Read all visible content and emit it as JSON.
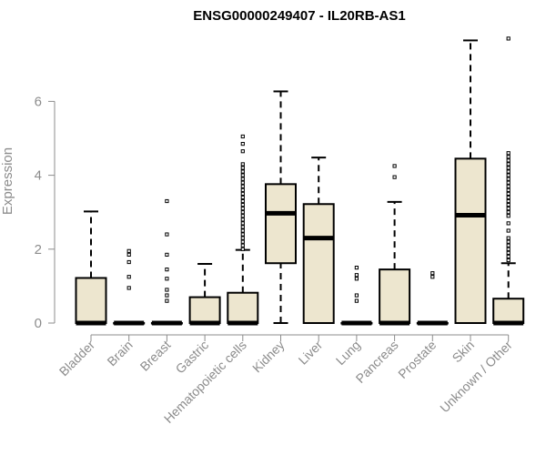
{
  "chart_data": {
    "type": "boxplot",
    "title": "ENSG00000249407 - IL20RB-AS1",
    "ylabel": "Expression",
    "xlabel": "",
    "ylim": [
      0,
      7.8
    ],
    "yticks": [
      0,
      2,
      4,
      6
    ],
    "grid": false,
    "box_color": "#ede6cf",
    "categories": [
      "Bladder",
      "Brain",
      "Breast",
      "Gastric",
      "Hematopoietic cells",
      "Kidney",
      "Liver",
      "Lung",
      "Pancreas",
      "Prostate",
      "Skin",
      "Unknown / Other"
    ],
    "boxes": [
      {
        "whisker_low": 0,
        "q1": 0,
        "median": 0,
        "q3": 1.22,
        "whisker_high": 3.02,
        "outliers": []
      },
      {
        "whisker_low": 0,
        "q1": 0,
        "median": 0,
        "q3": 0,
        "whisker_high": 0,
        "outliers": [
          0.95,
          1.25,
          1.65,
          1.85,
          1.95
        ]
      },
      {
        "whisker_low": 0,
        "q1": 0,
        "median": 0,
        "q3": 0,
        "whisker_high": 0,
        "outliers": [
          0.6,
          0.75,
          0.9,
          1.2,
          1.45,
          1.85,
          2.4,
          3.3
        ]
      },
      {
        "whisker_low": 0,
        "q1": 0,
        "median": 0,
        "q3": 0.7,
        "whisker_high": 1.6,
        "outliers": []
      },
      {
        "whisker_low": 0,
        "q1": 0,
        "median": 0,
        "q3": 0.82,
        "whisker_high": 1.98,
        "outliers": [
          2.0,
          2.1,
          2.2,
          2.3,
          2.4,
          2.5,
          2.6,
          2.7,
          2.8,
          2.9,
          3.0,
          3.1,
          3.2,
          3.3,
          3.4,
          3.5,
          3.6,
          3.7,
          3.8,
          3.9,
          4.0,
          4.1,
          4.2,
          4.3,
          4.65,
          4.85,
          5.05
        ]
      },
      {
        "whisker_low": 0,
        "q1": 1.62,
        "median": 2.97,
        "q3": 3.76,
        "whisker_high": 6.27,
        "outliers": []
      },
      {
        "whisker_low": 0,
        "q1": 0,
        "median": 2.3,
        "q3": 3.22,
        "whisker_high": 4.48,
        "outliers": []
      },
      {
        "whisker_low": 0,
        "q1": 0,
        "median": 0,
        "q3": 0,
        "whisker_high": 0,
        "outliers": [
          0.6,
          0.75,
          1.2,
          1.3,
          1.5
        ]
      },
      {
        "whisker_low": 0,
        "q1": 0,
        "median": 0,
        "q3": 1.45,
        "whisker_high": 3.28,
        "outliers": [
          3.95,
          4.25
        ]
      },
      {
        "whisker_low": 0,
        "q1": 0,
        "median": 0,
        "q3": 0,
        "whisker_high": 0,
        "outliers": [
          1.25,
          1.35
        ]
      },
      {
        "whisker_low": 0,
        "q1": 0,
        "median": 2.92,
        "q3": 4.45,
        "whisker_high": 7.65,
        "outliers": []
      },
      {
        "whisker_low": 0,
        "q1": 0,
        "median": 0,
        "q3": 0.66,
        "whisker_high": 1.62,
        "outliers": [
          1.7,
          1.8,
          1.9,
          2.0,
          2.1,
          2.2,
          2.3,
          2.5,
          2.7,
          2.9,
          3.0,
          3.1,
          3.2,
          3.3,
          3.4,
          3.5,
          3.6,
          3.7,
          3.8,
          3.9,
          4.0,
          4.1,
          4.2,
          4.3,
          4.4,
          4.5,
          4.6,
          7.7
        ]
      }
    ]
  }
}
